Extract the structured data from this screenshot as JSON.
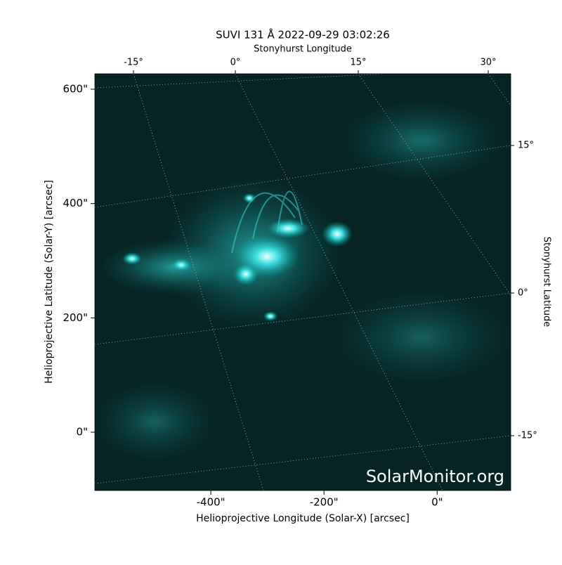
{
  "chart_data": {
    "type": "image",
    "title": "SUVI 131 Å 2022-09-29 03:02:26",
    "x_label": "Helioprojective Longitude (Solar-X) [arcsec]",
    "y_label": "Helioprojective Latitude (Solar-Y) [arcsec]",
    "x2_label": "Stonyhurst Longitude",
    "y2_label": "Stonyhurst Latitude",
    "watermark": "SolarMonitor.org",
    "xlim": [
      -605,
      130
    ],
    "ylim": [
      -102,
      627
    ],
    "xticks": [
      {
        "value": -400,
        "label": "-400\""
      },
      {
        "value": -200,
        "label": "-200\""
      },
      {
        "value": 0,
        "label": "0\""
      }
    ],
    "yticks": [
      {
        "value": 0,
        "label": "0\""
      },
      {
        "value": 200,
        "label": "200\""
      },
      {
        "value": 400,
        "label": "400\""
      },
      {
        "value": 600,
        "label": "600\""
      }
    ],
    "x2ticks": [
      {
        "value": -15,
        "label": "-15°"
      },
      {
        "value": 0,
        "label": "0°"
      },
      {
        "value": 15,
        "label": "15°"
      },
      {
        "value": 30,
        "label": "30°"
      }
    ],
    "y2ticks": [
      {
        "value": 15,
        "label": "15°"
      },
      {
        "value": 0,
        "label": "0°"
      },
      {
        "value": -15,
        "label": "-15°"
      }
    ],
    "color": "#00c8c8"
  }
}
